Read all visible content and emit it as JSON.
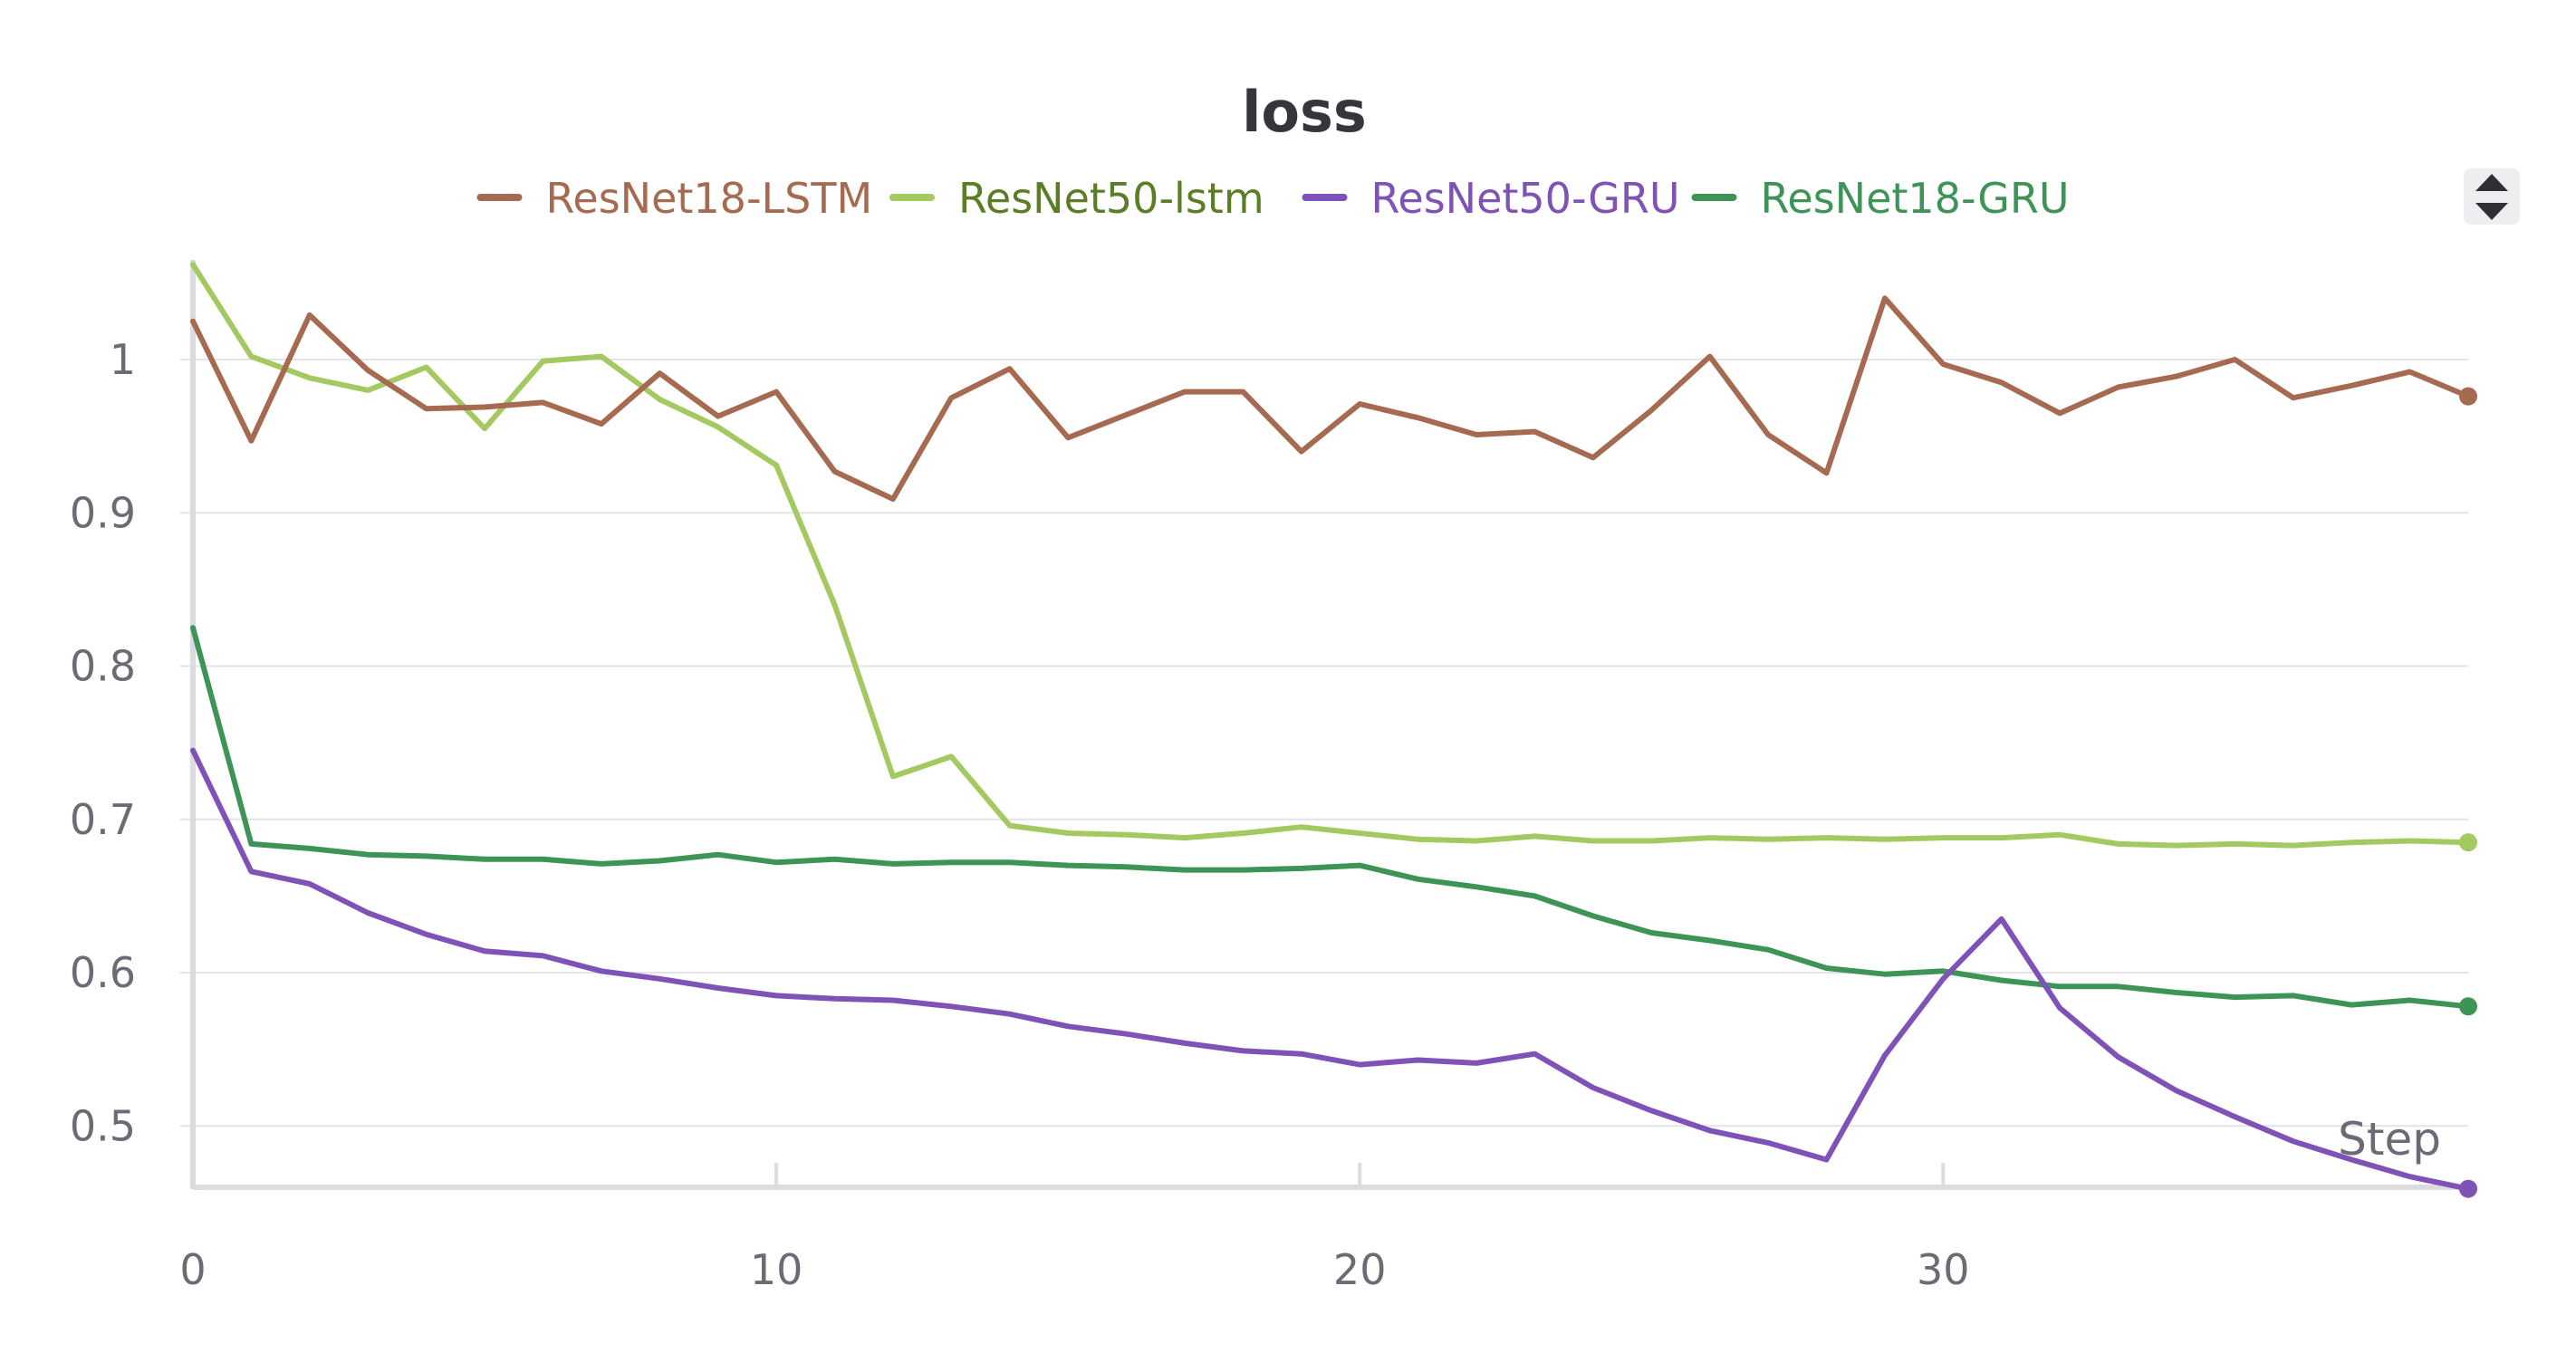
{
  "chart_data": {
    "type": "line",
    "title": "loss",
    "xlabel": "Step",
    "ylabel": "",
    "xlim": [
      0,
      39
    ],
    "ylim": [
      0.46,
      1.065
    ],
    "x_ticks": [
      0,
      10,
      20,
      30
    ],
    "y_ticks": [
      0.5,
      0.6,
      0.7,
      0.8,
      0.9,
      1
    ],
    "x_tick_labels": [
      "0",
      "10",
      "20",
      "30"
    ],
    "y_tick_labels": [
      "0.5",
      "0.6",
      "0.7",
      "0.8",
      "0.9",
      "1"
    ],
    "grid": true,
    "legend_position": "top-center",
    "x": [
      0,
      1,
      2,
      3,
      4,
      5,
      6,
      7,
      8,
      9,
      10,
      11,
      12,
      13,
      14,
      15,
      16,
      17,
      18,
      19,
      20,
      21,
      22,
      23,
      24,
      25,
      26,
      27,
      28,
      29,
      30,
      31,
      32,
      33,
      34,
      35,
      36,
      37,
      38,
      39
    ],
    "series": [
      {
        "name": "ResNet18-LSTM",
        "color": "#a66a50",
        "values": [
          1.025,
          0.947,
          1.029,
          0.993,
          0.968,
          0.969,
          0.972,
          0.958,
          0.991,
          0.963,
          0.979,
          0.927,
          0.909,
          0.975,
          0.994,
          0.949,
          0.964,
          0.979,
          0.979,
          0.94,
          0.971,
          0.962,
          0.951,
          0.953,
          0.936,
          0.967,
          1.002,
          0.951,
          0.926,
          1.04,
          0.997,
          0.985,
          0.965,
          0.982,
          0.989,
          1.0,
          0.975,
          0.983,
          0.992,
          0.976
        ]
      },
      {
        "name": "ResNet50-lstm",
        "color": "#a3c960",
        "values": [
          1.062,
          1.002,
          0.988,
          0.98,
          0.995,
          0.955,
          0.999,
          1.002,
          0.974,
          0.956,
          0.931,
          0.84,
          0.728,
          0.741,
          0.696,
          0.691,
          0.69,
          0.688,
          0.691,
          0.695,
          0.691,
          0.687,
          0.686,
          0.689,
          0.686,
          0.686,
          0.688,
          0.687,
          0.688,
          0.687,
          0.688,
          0.688,
          0.69,
          0.684,
          0.683,
          0.684,
          0.683,
          0.685,
          0.686,
          0.685
        ]
      },
      {
        "name": "ResNet50-GRU",
        "color": "#7e52b6",
        "values": [
          0.745,
          0.666,
          0.658,
          0.639,
          0.625,
          0.614,
          0.611,
          0.601,
          0.596,
          0.59,
          0.585,
          0.583,
          0.582,
          0.578,
          0.573,
          0.565,
          0.56,
          0.554,
          0.549,
          0.547,
          0.54,
          0.543,
          0.541,
          0.547,
          0.525,
          0.51,
          0.497,
          0.489,
          0.478,
          0.546,
          0.596,
          0.635,
          0.577,
          0.545,
          0.523,
          0.506,
          0.49,
          0.478,
          0.467,
          0.459
        ]
      },
      {
        "name": "ResNet18-GRU",
        "color": "#3e9456",
        "values": [
          0.825,
          0.684,
          0.681,
          0.677,
          0.676,
          0.674,
          0.674,
          0.671,
          0.673,
          0.677,
          0.672,
          0.674,
          0.671,
          0.672,
          0.672,
          0.67,
          0.669,
          0.667,
          0.667,
          0.668,
          0.67,
          0.661,
          0.656,
          0.65,
          0.637,
          0.626,
          0.621,
          0.615,
          0.603,
          0.599,
          0.601,
          0.595,
          0.591,
          0.591,
          0.587,
          0.584,
          0.585,
          0.579,
          0.582,
          0.578
        ]
      }
    ]
  },
  "legend_menu_icon": "sort-up-down-icon"
}
